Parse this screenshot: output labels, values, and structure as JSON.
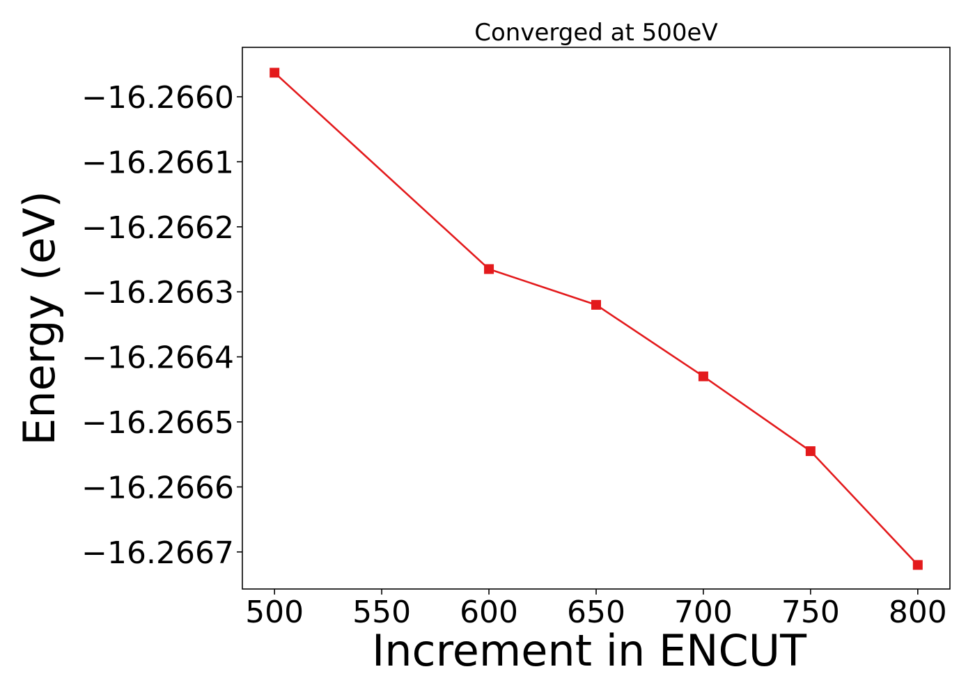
{
  "chart_data": {
    "type": "line",
    "title": "Converged at 500eV",
    "xlabel": "Increment in ENCUT",
    "ylabel": "Energy (eV)",
    "x": [
      500,
      600,
      650,
      700,
      750,
      800
    ],
    "series": [
      {
        "values": [
          -16.265963,
          -16.266265,
          -16.26632,
          -16.26643,
          -16.266545,
          -16.26672
        ],
        "color": "#e31a1c",
        "marker": "square"
      }
    ],
    "xticks": [
      500,
      550,
      600,
      650,
      700,
      750,
      800
    ],
    "xtick_labels": [
      "500",
      "550",
      "600",
      "650",
      "700",
      "750",
      "800"
    ],
    "yticks": [
      -16.266,
      -16.2661,
      -16.2662,
      -16.2663,
      -16.2664,
      -16.2665,
      -16.2666,
      -16.2667
    ],
    "ytick_labels": [
      "−16.2660",
      "−16.2661",
      "−16.2662",
      "−16.2663",
      "−16.2664",
      "−16.2665",
      "−16.2666",
      "−16.2667"
    ],
    "xlim": [
      485,
      815
    ],
    "ylim": [
      -16.266757,
      -16.265924
    ],
    "grid": false,
    "legend": false
  }
}
